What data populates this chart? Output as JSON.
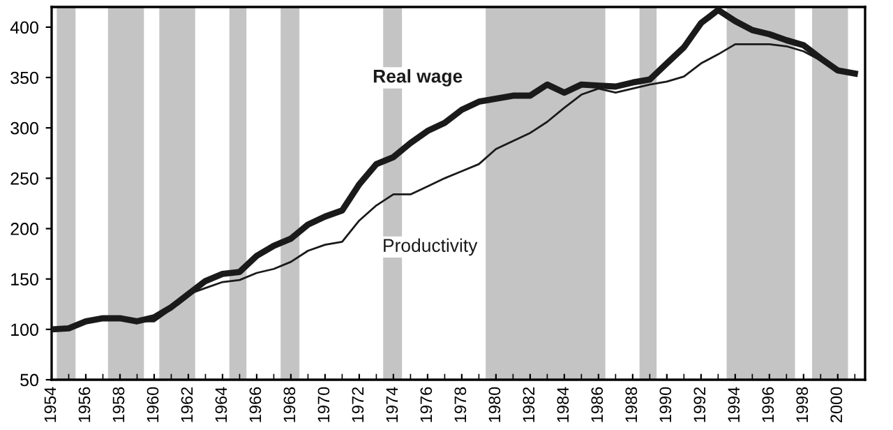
{
  "chart_data": {
    "type": "line",
    "x": [
      1954,
      1955,
      1956,
      1957,
      1958,
      1959,
      1960,
      1961,
      1962,
      1963,
      1964,
      1965,
      1966,
      1967,
      1968,
      1969,
      1970,
      1971,
      1972,
      1973,
      1974,
      1975,
      1976,
      1977,
      1978,
      1979,
      1980,
      1981,
      1982,
      1983,
      1984,
      1985,
      1986,
      1987,
      1988,
      1989,
      1990,
      1991,
      1992,
      1993,
      1994,
      1995,
      1996,
      1997,
      1998,
      1999,
      2000,
      2001
    ],
    "series": [
      {
        "name": "Real wage",
        "color": "#1a1a1a",
        "values": [
          100,
          101,
          108,
          111,
          111,
          108,
          112,
          122,
          135,
          148,
          155,
          157,
          173,
          183,
          190,
          204,
          212,
          218,
          244,
          264,
          271,
          285,
          297,
          305,
          318,
          326,
          329,
          332,
          332,
          343,
          335,
          343,
          342,
          341,
          345,
          348,
          364,
          380,
          404,
          417,
          406,
          397,
          393,
          387,
          382,
          369,
          357,
          354
        ]
      },
      {
        "name": "Productivity",
        "color": "#1a1a1a",
        "values": [
          100,
          101,
          109,
          111,
          110,
          108,
          108,
          120,
          135,
          141,
          147,
          149,
          156,
          160,
          167,
          178,
          184,
          187,
          208,
          223,
          234,
          234,
          242,
          250,
          257,
          264,
          279,
          287,
          295,
          306,
          320,
          333,
          339,
          335,
          339,
          343,
          346,
          351,
          364,
          373,
          383,
          383,
          383,
          381,
          376,
          367,
          358,
          354
        ]
      }
    ],
    "xlim": [
      1954,
      2001.6
    ],
    "ylim": [
      50,
      420
    ],
    "xticks": [
      1954,
      1956,
      1958,
      1960,
      1962,
      1964,
      1966,
      1968,
      1970,
      1972,
      1974,
      1976,
      1978,
      1980,
      1982,
      1984,
      1986,
      1988,
      1990,
      1992,
      1994,
      1996,
      1998,
      2000
    ],
    "yticks": [
      50,
      100,
      150,
      200,
      250,
      300,
      350,
      400
    ],
    "bands": [
      {
        "axis": "x",
        "from": 1954.3,
        "to": 1955.4,
        "color": "#c4c4c4"
      },
      {
        "axis": "x",
        "from": 1957.3,
        "to": 1959.4,
        "color": "#c4c4c4"
      },
      {
        "axis": "x",
        "from": 1960.3,
        "to": 1962.4,
        "color": "#c4c4c4"
      },
      {
        "axis": "x",
        "from": 1964.4,
        "to": 1965.4,
        "color": "#c4c4c4"
      },
      {
        "axis": "x",
        "from": 1967.4,
        "to": 1968.5,
        "color": "#c4c4c4"
      },
      {
        "axis": "x",
        "from": 1973.4,
        "to": 1974.5,
        "color": "#c4c4c4"
      },
      {
        "axis": "x",
        "from": 1979.4,
        "to": 1986.4,
        "color": "#c4c4c4"
      },
      {
        "axis": "x",
        "from": 1988.4,
        "to": 1989.4,
        "color": "#c4c4c4"
      },
      {
        "axis": "x",
        "from": 1993.5,
        "to": 1997.5,
        "color": "#c4c4c4"
      },
      {
        "axis": "x",
        "from": 1998.5,
        "to": 2000.6,
        "color": "#c4c4c4"
      }
    ],
    "grid": false,
    "legend": false,
    "marker": "none",
    "line_style": "solid"
  }
}
